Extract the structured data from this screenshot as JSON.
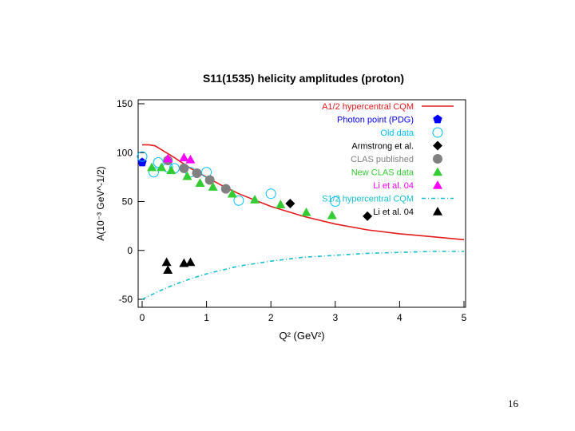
{
  "slide": {
    "page_number": "16"
  },
  "chart_data": {
    "type": "scatter",
    "title": "S11(1535) helicity amplitudes (proton)",
    "xlabel": "Q² (GeV²)",
    "ylabel": "A(10⁻³ GeV^-1/2)",
    "xlim": [
      0,
      5
    ],
    "ylim": [
      -50,
      150
    ],
    "x_ticks": [
      "0",
      "1",
      "2",
      "3",
      "4",
      "5"
    ],
    "y_ticks": [
      "-50",
      "0",
      "50",
      "100",
      "150"
    ],
    "grid": false,
    "legend_position": "top-right",
    "colors": {
      "a12_curve": "#e41a1c",
      "s12_curve": "#17becf",
      "photon_point": "#0000ff",
      "old_data": "#00bfff",
      "armstrong": "#000000",
      "clas_published": "#808080",
      "new_clas": "#33cc33",
      "li_a": "#ff00ff",
      "li_s": "#000000"
    },
    "series": [
      {
        "name": "A1/2 hypercentral CQM",
        "key": "a12_curve",
        "marker": "line",
        "x": [
          0,
          0.1,
          0.2,
          0.3,
          0.5,
          0.75,
          1.0,
          1.25,
          1.5,
          2.0,
          2.5,
          3.0,
          3.5,
          4.0,
          4.5,
          5.0
        ],
        "y": [
          108,
          108,
          107,
          103,
          95,
          84,
          75,
          66,
          58,
          45,
          35,
          27,
          21,
          17,
          14,
          11
        ]
      },
      {
        "name": "Photon point (PDG)",
        "key": "photon_point",
        "marker": "pentagon",
        "x": [
          0
        ],
        "y": [
          90
        ]
      },
      {
        "name": "Old data",
        "key": "old_data",
        "marker": "open-circle",
        "x": [
          0,
          0.18,
          0.25,
          0.4,
          0.5,
          0.75,
          1.0,
          1.5,
          2.0,
          3.0
        ],
        "y": [
          96,
          80,
          90,
          85,
          84,
          80,
          80,
          51,
          58,
          50
        ]
      },
      {
        "name": "Armstrong et al.",
        "key": "armstrong",
        "marker": "diamond",
        "x": [
          2.3,
          3.5
        ],
        "y": [
          48,
          35
        ]
      },
      {
        "name": "CLAS published",
        "key": "clas_published",
        "marker": "filled-circle",
        "x": [
          0.4,
          0.65,
          0.85,
          1.05,
          1.3
        ],
        "y": [
          92,
          84,
          79,
          72,
          63
        ]
      },
      {
        "name": "New CLAS data",
        "key": "new_clas",
        "marker": "triangle",
        "x": [
          0.15,
          0.3,
          0.45,
          0.7,
          0.9,
          1.1,
          1.4,
          1.75,
          2.15,
          2.55,
          2.95
        ],
        "y": [
          85,
          85,
          82,
          76,
          69,
          65,
          58,
          52,
          47,
          39,
          36
        ]
      },
      {
        "name": "Li et al. 04",
        "key": "li_a",
        "marker": "triangle",
        "x": [
          0.4,
          0.65,
          0.75
        ],
        "y": [
          94,
          95,
          93
        ]
      },
      {
        "name": "S1/2 hypercentral CQM",
        "key": "s12_curve",
        "marker": "dash-dot-line",
        "x": [
          0,
          0.25,
          0.5,
          0.75,
          1.0,
          1.5,
          2.0,
          2.5,
          3.0,
          3.5,
          4.0,
          4.5,
          5.0
        ],
        "y": [
          -50,
          -42,
          -35,
          -29,
          -24,
          -16,
          -11,
          -7,
          -5,
          -3,
          -2,
          -1,
          -1
        ]
      },
      {
        "name": "Li et al. 04",
        "key": "li_s",
        "marker": "triangle",
        "x": [
          0.38,
          0.4,
          0.65,
          0.75
        ],
        "y": [
          -12,
          -20,
          -13,
          -12
        ]
      }
    ]
  }
}
